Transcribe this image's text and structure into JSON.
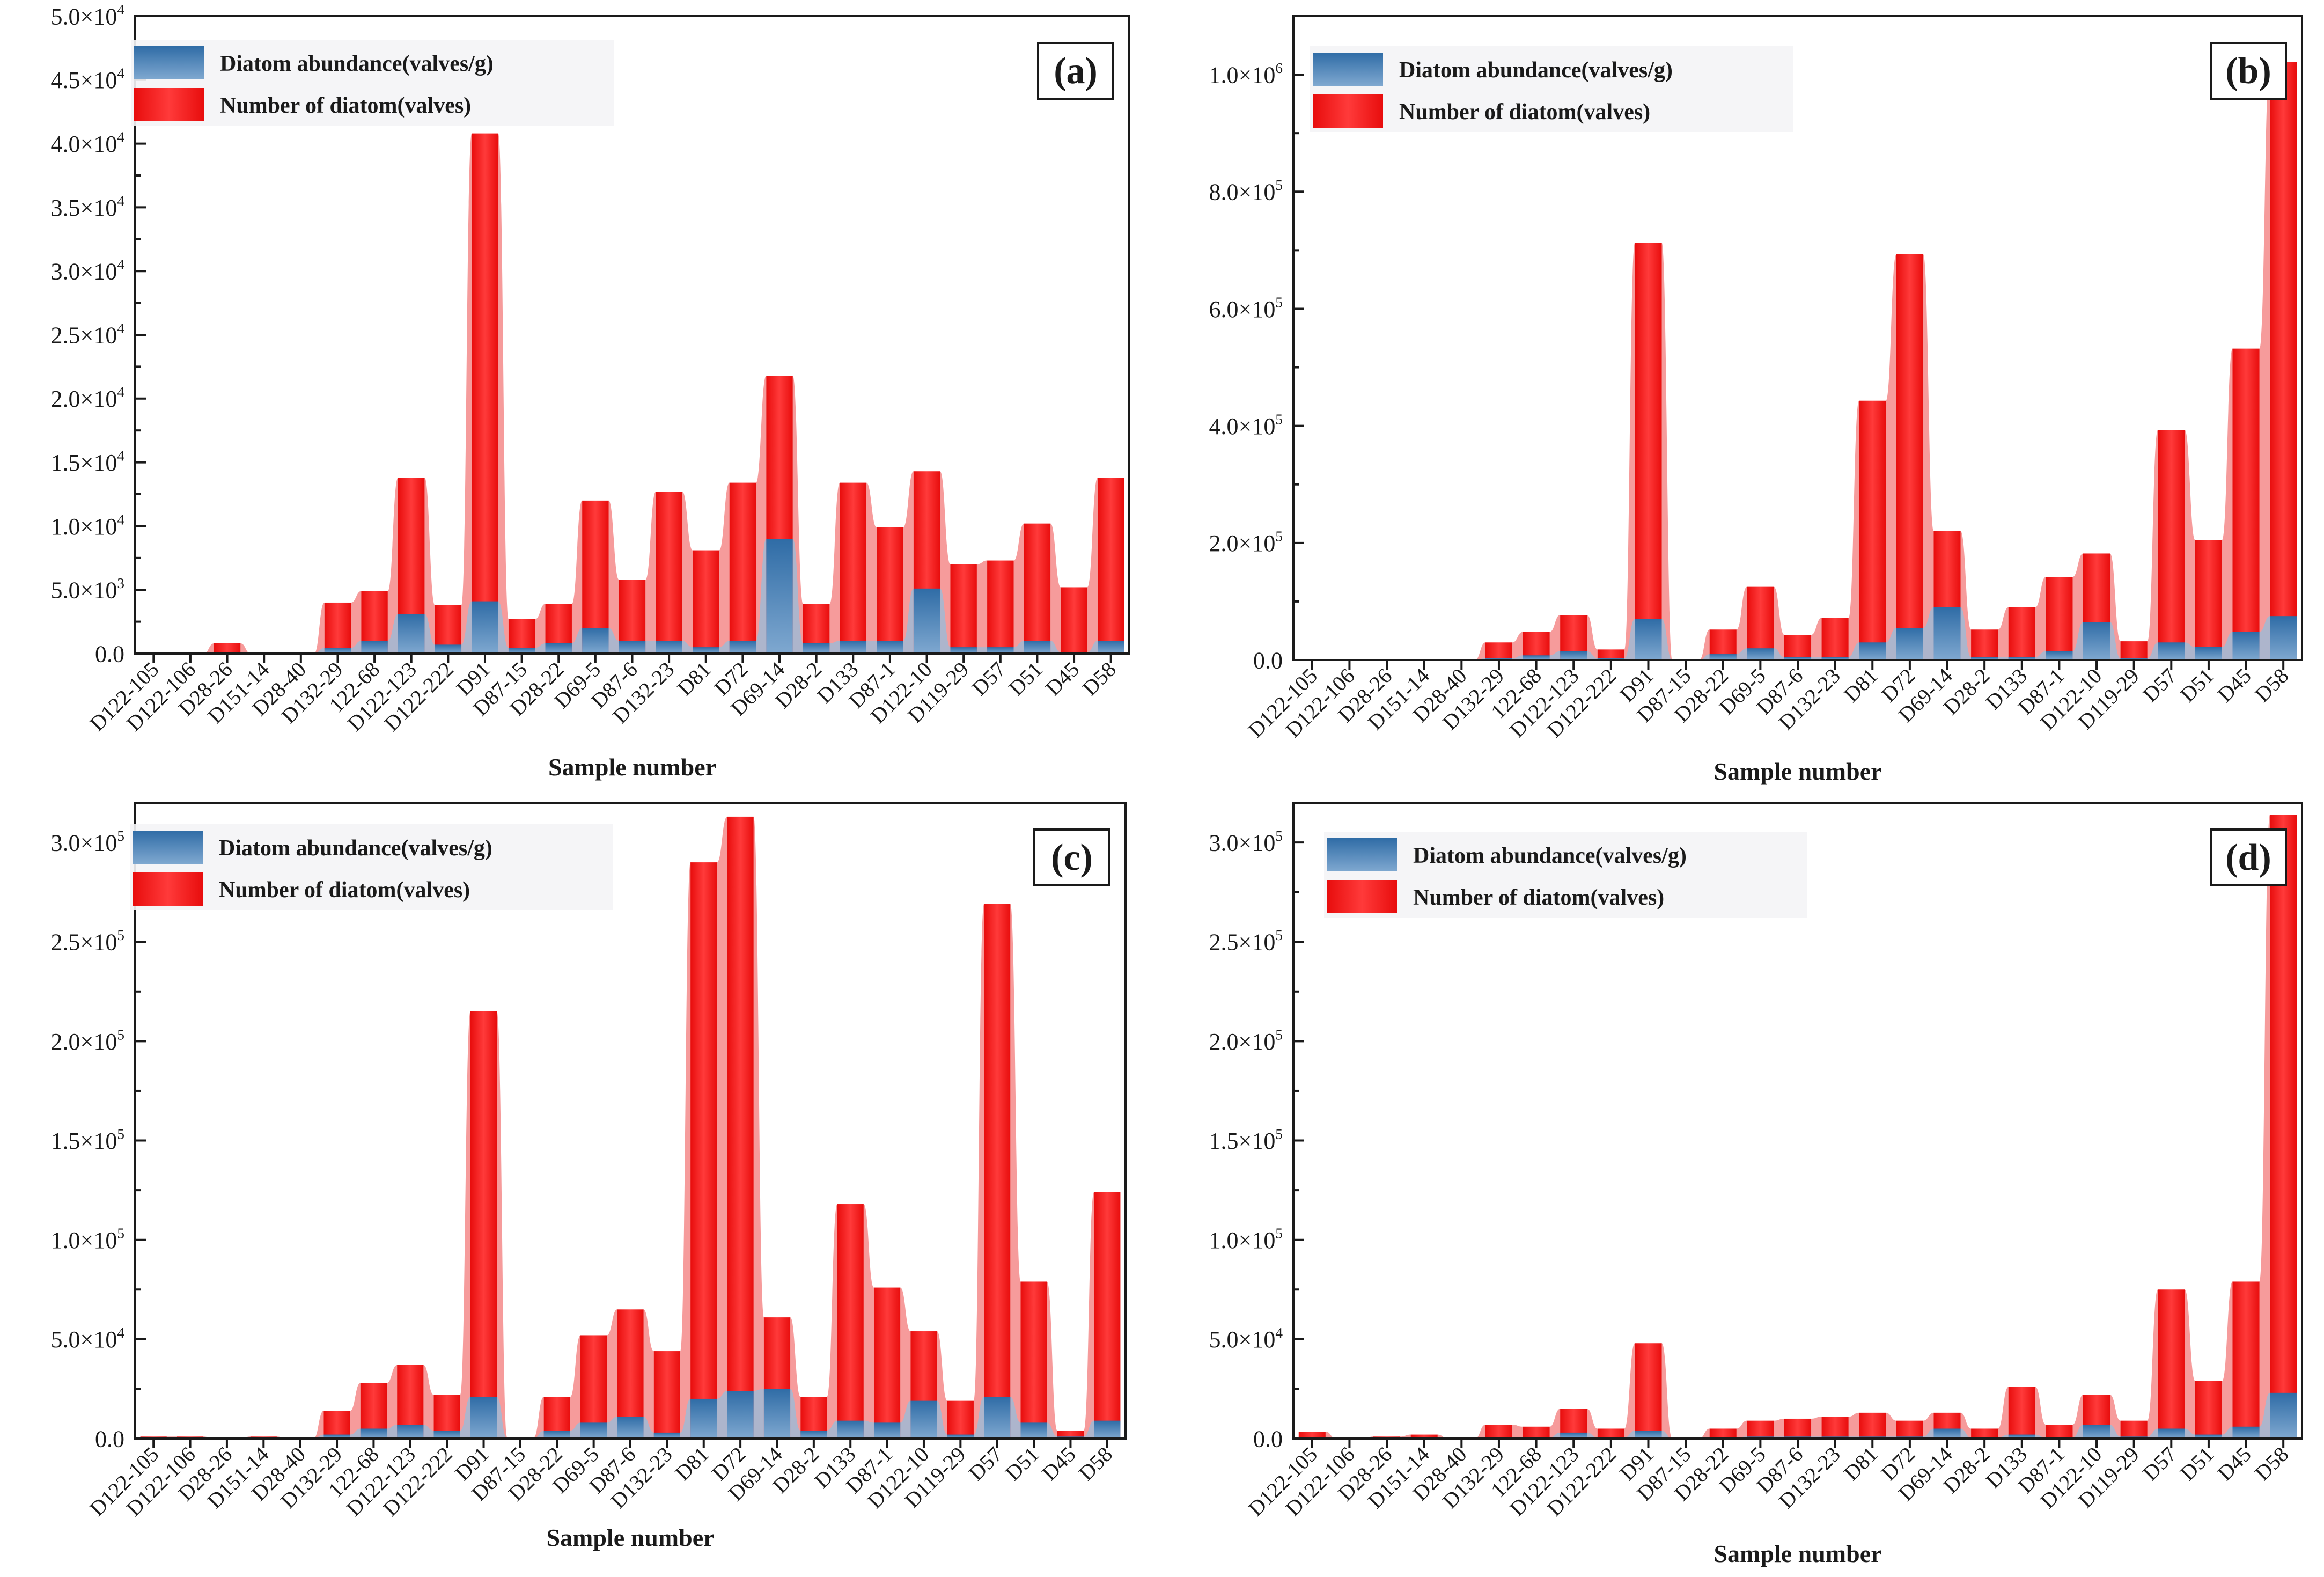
{
  "categories": [
    "D122-105",
    "D122-106",
    "D28-26",
    "D151-14",
    "D28-40",
    "D132-29",
    "122-68",
    "D122-123",
    "D122-222",
    "D91",
    "D87-15",
    "D28-22",
    "D69-5",
    "D87-6",
    "D132-23",
    "D81",
    "D72",
    "D69-14",
    "D28-2",
    "D133",
    "D87-1",
    "D122-10",
    "D119-29",
    "D57",
    "D51",
    "D45",
    "D58"
  ],
  "colors": {
    "abundance": "#3f7cb4",
    "abundance_light": "#9bbbd8",
    "number": "#f21d1d",
    "number_light": "#f58a8a"
  },
  "chart_data": [
    {
      "type": "bar",
      "panel": "(a)",
      "xlabel": "Sample number",
      "ylabel": "",
      "ylim": [
        0,
        50000
      ],
      "yticks": [
        {
          "v": 0,
          "m": "0.0",
          "e": ""
        },
        {
          "v": 5000,
          "m": "5.0×10",
          "e": "3"
        },
        {
          "v": 10000,
          "m": "1.0×10",
          "e": "4"
        },
        {
          "v": 15000,
          "m": "1.5×10",
          "e": "4"
        },
        {
          "v": 20000,
          "m": "2.0×10",
          "e": "4"
        },
        {
          "v": 25000,
          "m": "2.5×10",
          "e": "4"
        },
        {
          "v": 30000,
          "m": "3.0×10",
          "e": "4"
        },
        {
          "v": 35000,
          "m": "3.5×10",
          "e": "4"
        },
        {
          "v": 40000,
          "m": "4.0×10",
          "e": "4"
        },
        {
          "v": 45000,
          "m": "4.5×10",
          "e": "4"
        },
        {
          "v": 50000,
          "m": "5.0×10",
          "e": "4"
        }
      ],
      "legend": [
        "Diatom abundance(valves/g)",
        "Number of diatom(valves)"
      ],
      "series": [
        {
          "name": "Diatom abundance(valves/g)",
          "values": [
            0,
            0,
            80,
            0,
            0,
            450,
            1000,
            3100,
            700,
            4100,
            450,
            800,
            2000,
            1000,
            1000,
            500,
            1000,
            9000,
            800,
            1000,
            1000,
            5100,
            500,
            500,
            1000,
            100,
            1000
          ]
        },
        {
          "name": "Number of diatom(valves)",
          "values": [
            0,
            0,
            800,
            0,
            0,
            4000,
            4900,
            13800,
            3800,
            40800,
            2700,
            3900,
            12000,
            5800,
            12700,
            8100,
            13400,
            21800,
            3900,
            13400,
            9900,
            14300,
            7000,
            7300,
            10200,
            5200,
            13800
          ]
        }
      ]
    },
    {
      "type": "bar",
      "panel": "(b)",
      "xlabel": "Sample number",
      "ylabel": "",
      "ylim": [
        0,
        1100000
      ],
      "yticks": [
        {
          "v": 0,
          "m": "0.0",
          "e": ""
        },
        {
          "v": 200000,
          "m": "2.0×10",
          "e": "5"
        },
        {
          "v": 400000,
          "m": "4.0×10",
          "e": "5"
        },
        {
          "v": 600000,
          "m": "6.0×10",
          "e": "5"
        },
        {
          "v": 800000,
          "m": "8.0×10",
          "e": "5"
        },
        {
          "v": 1000000,
          "m": "1.0×10",
          "e": "6"
        }
      ],
      "legend": [
        "Diatom abundance(valves/g)",
        "Number of diatom(valves)"
      ],
      "series": [
        {
          "name": "Diatom abundance(valves/g)",
          "values": [
            0,
            0,
            0,
            0,
            0,
            3000,
            8000,
            15000,
            3000,
            70000,
            0,
            10000,
            20000,
            5000,
            5000,
            30000,
            55000,
            90000,
            5000,
            5000,
            15000,
            65000,
            3000,
            30000,
            22000,
            48000,
            75000
          ]
        },
        {
          "name": "Number of diatom(valves)",
          "values": [
            0,
            0,
            0,
            0,
            0,
            30000,
            48000,
            77000,
            18000,
            713000,
            0,
            52000,
            125000,
            43000,
            72000,
            443000,
            693000,
            220000,
            52000,
            90000,
            142000,
            182000,
            32000,
            393000,
            205000,
            532000,
            1022000
          ]
        }
      ]
    },
    {
      "type": "bar",
      "panel": "(c)",
      "xlabel": "Sample number",
      "ylabel": "",
      "ylim": [
        0,
        320000
      ],
      "yticks": [
        {
          "v": 0,
          "m": "0.0",
          "e": ""
        },
        {
          "v": 50000,
          "m": "5.0×10",
          "e": "4"
        },
        {
          "v": 100000,
          "m": "1.0×10",
          "e": "5"
        },
        {
          "v": 150000,
          "m": "1.5×10",
          "e": "5"
        },
        {
          "v": 200000,
          "m": "2.0×10",
          "e": "5"
        },
        {
          "v": 250000,
          "m": "2.5×10",
          "e": "5"
        },
        {
          "v": 300000,
          "m": "3.0×10",
          "e": "5"
        }
      ],
      "legend": [
        "Diatom abundance(valves/g)",
        "Number of diatom(valves)"
      ],
      "series": [
        {
          "name": "Diatom abundance(valves/g)",
          "values": [
            100,
            100,
            0,
            100,
            0,
            2000,
            5000,
            7000,
            4000,
            21000,
            0,
            4000,
            8000,
            11000,
            3000,
            20000,
            24000,
            25000,
            4000,
            9000,
            8000,
            19000,
            2000,
            21000,
            8000,
            1000,
            9000
          ]
        },
        {
          "name": "Number of diatom(valves)",
          "values": [
            1000,
            1000,
            0,
            1000,
            0,
            14000,
            28000,
            37000,
            22000,
            215000,
            500,
            21000,
            52000,
            65000,
            44000,
            290000,
            313000,
            61000,
            21000,
            118000,
            76000,
            54000,
            19000,
            269000,
            79000,
            4000,
            124000
          ]
        }
      ]
    },
    {
      "type": "bar",
      "panel": "(d)",
      "xlabel": "Sample number",
      "ylabel": "",
      "ylim": [
        0,
        320000
      ],
      "yticks": [
        {
          "v": 0,
          "m": "0.0",
          "e": ""
        },
        {
          "v": 50000,
          "m": "5.0×10",
          "e": "4"
        },
        {
          "v": 100000,
          "m": "1.0×10",
          "e": "5"
        },
        {
          "v": 150000,
          "m": "1.5×10",
          "e": "5"
        },
        {
          "v": 200000,
          "m": "2.0×10",
          "e": "5"
        },
        {
          "v": 250000,
          "m": "2.5×10",
          "e": "5"
        },
        {
          "v": 300000,
          "m": "3.0×10",
          "e": "5"
        }
      ],
      "legend": [
        "Diatom abundance(valves/g)",
        "Number of diatom(valves)"
      ],
      "series": [
        {
          "name": "Diatom abundance(valves/g)",
          "values": [
            200,
            0,
            100,
            200,
            0,
            500,
            500,
            3000,
            500,
            4000,
            0,
            500,
            1000,
            1000,
            1000,
            1000,
            1000,
            5000,
            500,
            2000,
            500,
            7000,
            1000,
            5000,
            2000,
            6000,
            23000
          ]
        },
        {
          "name": "Number of diatom(valves)",
          "values": [
            3500,
            0,
            1000,
            2000,
            0,
            7000,
            6000,
            15000,
            5000,
            48000,
            0,
            5000,
            9000,
            10000,
            11000,
            13000,
            9000,
            13000,
            5000,
            26000,
            7000,
            22000,
            9000,
            75000,
            29000,
            79000,
            314000
          ]
        }
      ]
    }
  ]
}
